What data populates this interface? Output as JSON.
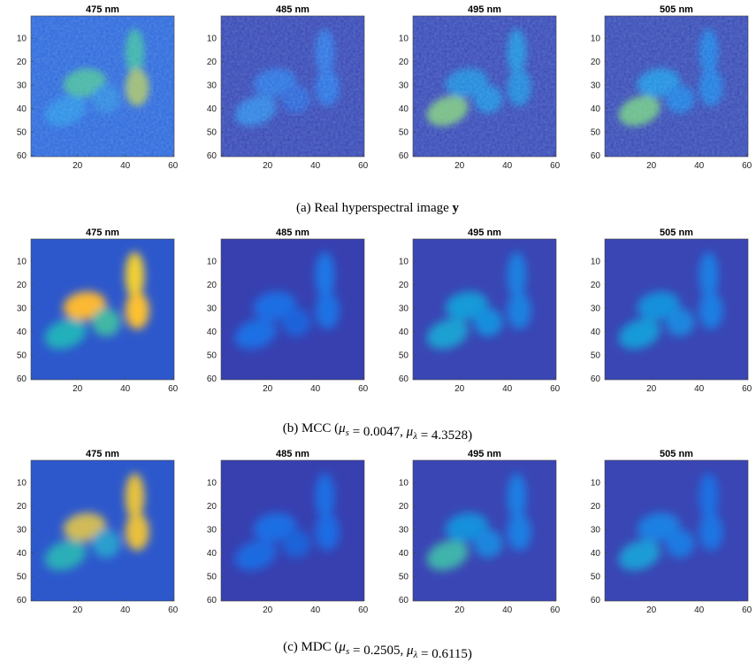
{
  "figure": {
    "xticks": [
      20,
      40,
      60
    ],
    "yticks": [
      10,
      20,
      30,
      40,
      50,
      60
    ],
    "rows": [
      {
        "caption": [
          {
            "text": "(a) Real hyperspectral image "
          },
          {
            "text": "y",
            "bold": true
          }
        ],
        "panels": [
          {
            "title": "475 nm"
          },
          {
            "title": "485 nm"
          },
          {
            "title": "495 nm"
          },
          {
            "title": "505 nm"
          }
        ]
      },
      {
        "caption": [
          {
            "text": "(b) MCC ("
          },
          {
            "text": "μ",
            "sub": "s"
          },
          {
            "text": " = 0.0047, "
          },
          {
            "text": "μ",
            "sub": "λ"
          },
          {
            "text": " = 4.3528)"
          }
        ],
        "panels": [
          {
            "title": "475 nm"
          },
          {
            "title": "485 nm"
          },
          {
            "title": "495 nm"
          },
          {
            "title": "505 nm"
          }
        ]
      },
      {
        "caption": [
          {
            "text": "(c) MDC ("
          },
          {
            "text": "μ",
            "sub": "s"
          },
          {
            "text": " = 0.2505, "
          },
          {
            "text": "μ",
            "sub": "λ"
          },
          {
            "text": " = 0.6115)"
          }
        ],
        "panels": [
          {
            "title": "475 nm"
          },
          {
            "title": "485 nm"
          },
          {
            "title": "495 nm"
          },
          {
            "title": "505 nm"
          }
        ]
      }
    ]
  }
}
